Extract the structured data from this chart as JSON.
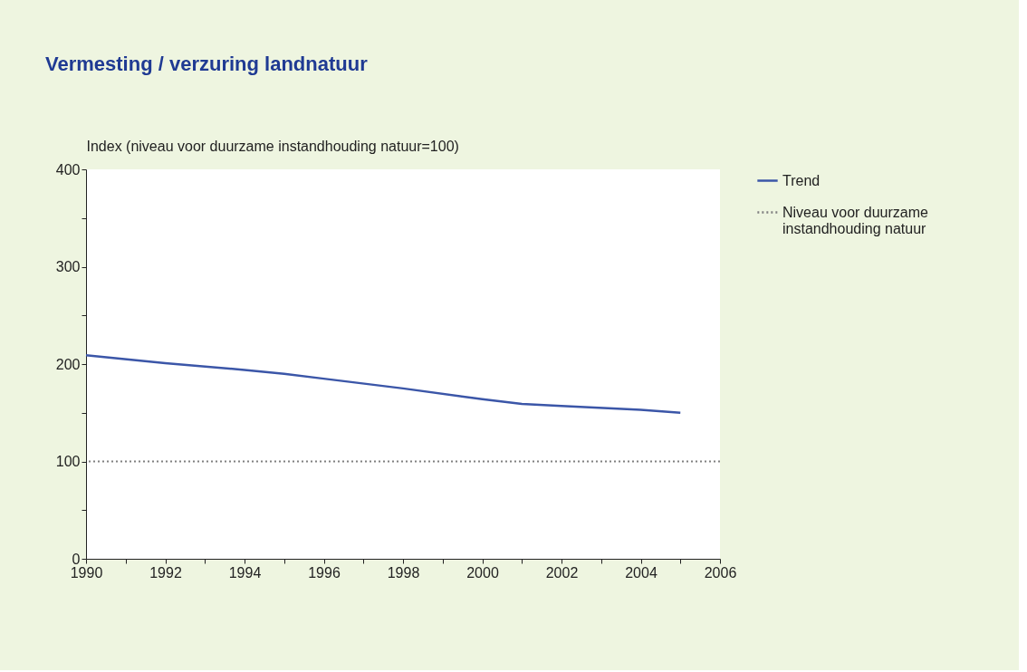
{
  "chart_data": {
    "type": "line",
    "title": "Vermesting / verzuring landnatuur",
    "ylabel": "Index (niveau voor duurzame instandhouding natuur=100)",
    "x": [
      1990,
      1992,
      1994,
      1995,
      1996,
      1998,
      2000,
      2001,
      2002,
      2004,
      2005
    ],
    "series": [
      {
        "name": "Trend",
        "color": "#3b56a8",
        "values": [
          209,
          201,
          194,
          190,
          185,
          175,
          164,
          159,
          157,
          153,
          150
        ]
      }
    ],
    "xlim": [
      1990,
      2006
    ],
    "xticks": [
      1990,
      {
        "value": 1991,
        "label": null
      },
      1992,
      {
        "value": 1993,
        "label": null
      },
      1994,
      {
        "value": 1995,
        "label": null
      },
      1996,
      {
        "value": 1997,
        "label": null
      },
      1998,
      {
        "value": 1999,
        "label": null
      },
      2000,
      {
        "value": 2001,
        "label": null
      },
      2002,
      {
        "value": 2003,
        "label": null
      },
      2004,
      {
        "value": 2005,
        "label": null
      },
      2006
    ],
    "ylim": [
      0,
      400
    ],
    "yticks": [
      0,
      {
        "value": 50,
        "label": null
      },
      100,
      {
        "value": 150,
        "label": null
      },
      200,
      {
        "value": 250,
        "label": null
      },
      300,
      {
        "value": 350,
        "label": null
      },
      400
    ],
    "ref_lines": [
      {
        "axis": "y",
        "value": 100,
        "label": "Niveau voor duurzame instandhouding natuur",
        "color": "#808080",
        "line_style": "dotted"
      }
    ],
    "grid": false,
    "legend": "right",
    "marker": "none",
    "line_style": "solid"
  }
}
